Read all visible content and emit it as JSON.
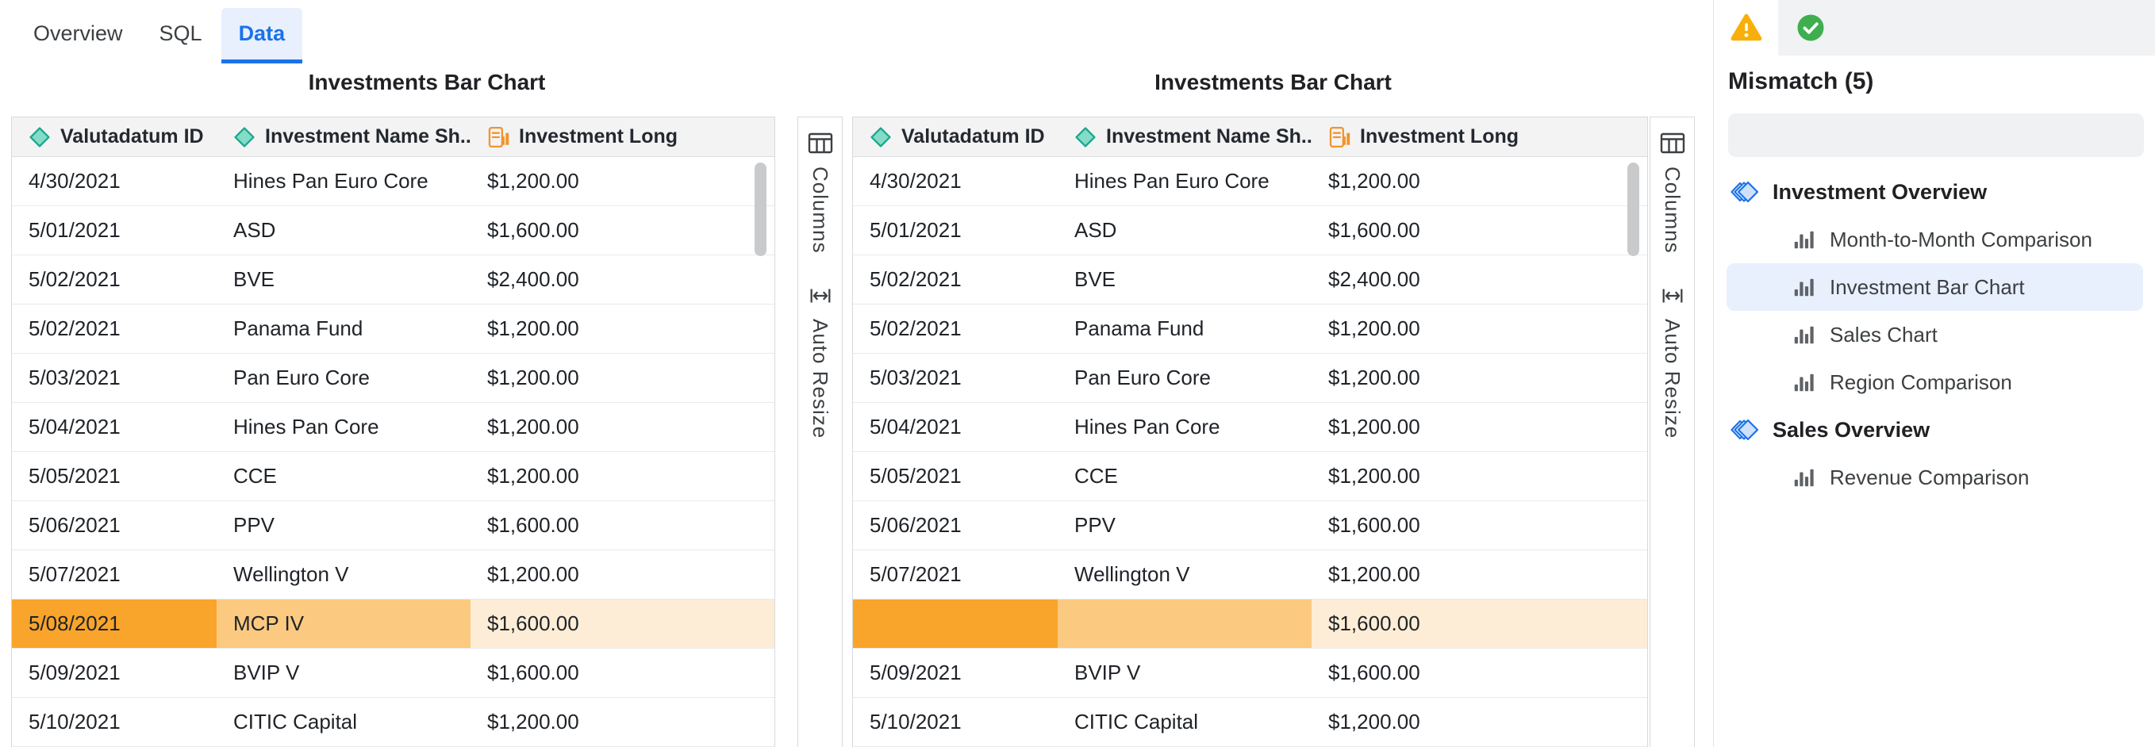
{
  "tab_bar": {
    "tabs": [
      {
        "label": "Overview",
        "active": false
      },
      {
        "label": "SQL",
        "active": false
      },
      {
        "label": "Data",
        "active": true
      }
    ]
  },
  "grids": [
    {
      "title": "Investments Bar Chart",
      "columns": [
        {
          "label": "Valutadatum ID",
          "icon": "diamond-icon"
        },
        {
          "label": "Investment Name Sh...",
          "icon": "diamond-icon"
        },
        {
          "label": "Investment Long",
          "icon": "aggregation-icon"
        }
      ],
      "rows": [
        [
          "4/30/2021",
          "Hines Pan Euro Core",
          "$1,200.00"
        ],
        [
          "5/01/2021",
          "ASD",
          "$1,600.00"
        ],
        [
          "5/02/2021",
          "BVE",
          "$2,400.00"
        ],
        [
          "5/02/2021",
          "Panama Fund",
          "$1,200.00"
        ],
        [
          "5/03/2021",
          "Pan Euro Core",
          "$1,200.00"
        ],
        [
          "5/04/2021",
          "Hines Pan Core",
          "$1,200.00"
        ],
        [
          "5/05/2021",
          "CCE",
          "$1,200.00"
        ],
        [
          "5/06/2021",
          "PPV",
          "$1,600.00"
        ],
        [
          "5/07/2021",
          "Wellington V",
          "$1,200.00"
        ],
        [
          "5/08/2021",
          "MCP IV",
          "$1,600.00"
        ],
        [
          "5/09/2021",
          "BVIP V",
          "$1,600.00"
        ],
        [
          "5/10/2021",
          "CITIC Capital",
          "$1,200.00"
        ]
      ],
      "highlight_row": 9,
      "side_buttons": [
        {
          "label": "Columns",
          "icon": "columns-icon"
        },
        {
          "label": "Auto Resize",
          "icon": "auto-resize-icon"
        }
      ]
    },
    {
      "title": "Investments Bar Chart",
      "columns": [
        {
          "label": "Valutadatum ID",
          "icon": "diamond-icon"
        },
        {
          "label": "Investment Name Sh...",
          "icon": "diamond-icon"
        },
        {
          "label": "Investment Long",
          "icon": "aggregation-icon"
        }
      ],
      "rows": [
        [
          "4/30/2021",
          "Hines Pan Euro Core",
          "$1,200.00"
        ],
        [
          "5/01/2021",
          "ASD",
          "$1,600.00"
        ],
        [
          "5/02/2021",
          "BVE",
          "$2,400.00"
        ],
        [
          "5/02/2021",
          "Panama Fund",
          "$1,200.00"
        ],
        [
          "5/03/2021",
          "Pan Euro Core",
          "$1,200.00"
        ],
        [
          "5/04/2021",
          "Hines Pan Core",
          "$1,200.00"
        ],
        [
          "5/05/2021",
          "CCE",
          "$1,200.00"
        ],
        [
          "5/06/2021",
          "PPV",
          "$1,600.00"
        ],
        [
          "5/07/2021",
          "Wellington V",
          "$1,200.00"
        ],
        [
          "",
          "",
          "$1,600.00"
        ],
        [
          "5/09/2021",
          "BVIP V",
          "$1,600.00"
        ],
        [
          "5/10/2021",
          "CITIC Capital",
          "$1,200.00"
        ]
      ],
      "highlight_row": 9,
      "side_buttons": [
        {
          "label": "Columns",
          "icon": "columns-icon"
        },
        {
          "label": "Auto Resize",
          "icon": "auto-resize-icon"
        }
      ]
    }
  ],
  "panel": {
    "status_tabs": [
      {
        "icon": "warning-icon",
        "active": true
      },
      {
        "icon": "success-icon",
        "active": false
      }
    ],
    "heading": "Mismatch (5)",
    "search": {
      "placeholder": "",
      "icon": "search-icon"
    },
    "tree": [
      {
        "label": "Investment Overview",
        "icon": "dashboard-icon",
        "items": [
          {
            "label": "Month-to-Month Comparison",
            "icon": "bar-chart-icon",
            "selected": false
          },
          {
            "label": "Investment Bar Chart",
            "icon": "bar-chart-icon",
            "selected": true
          },
          {
            "label": "Sales Chart",
            "icon": "bar-chart-icon",
            "selected": false
          },
          {
            "label": "Region Comparison",
            "icon": "bar-chart-icon",
            "selected": false
          }
        ]
      },
      {
        "label": "Sales Overview",
        "icon": "dashboard-icon",
        "items": [
          {
            "label": "Revenue Comparison",
            "icon": "bar-chart-icon",
            "selected": false
          }
        ]
      }
    ]
  },
  "colors": {
    "tab_active": "#1A73E8",
    "tab_active_bg": "#E8F0FE",
    "highlight_strong": "#F9A42B",
    "highlight_mid": "#FBCA80",
    "highlight_light": "#FDEDD6",
    "selected_item_bg": "#E8F0FE",
    "warning": "#F9AF0B",
    "success": "#3FAE4F",
    "diamond_fill": "#82DCC7",
    "diamond_stroke": "#1AA68C",
    "aggregation_orange": "#F0942C",
    "header_bg": "#F3F3F4"
  }
}
